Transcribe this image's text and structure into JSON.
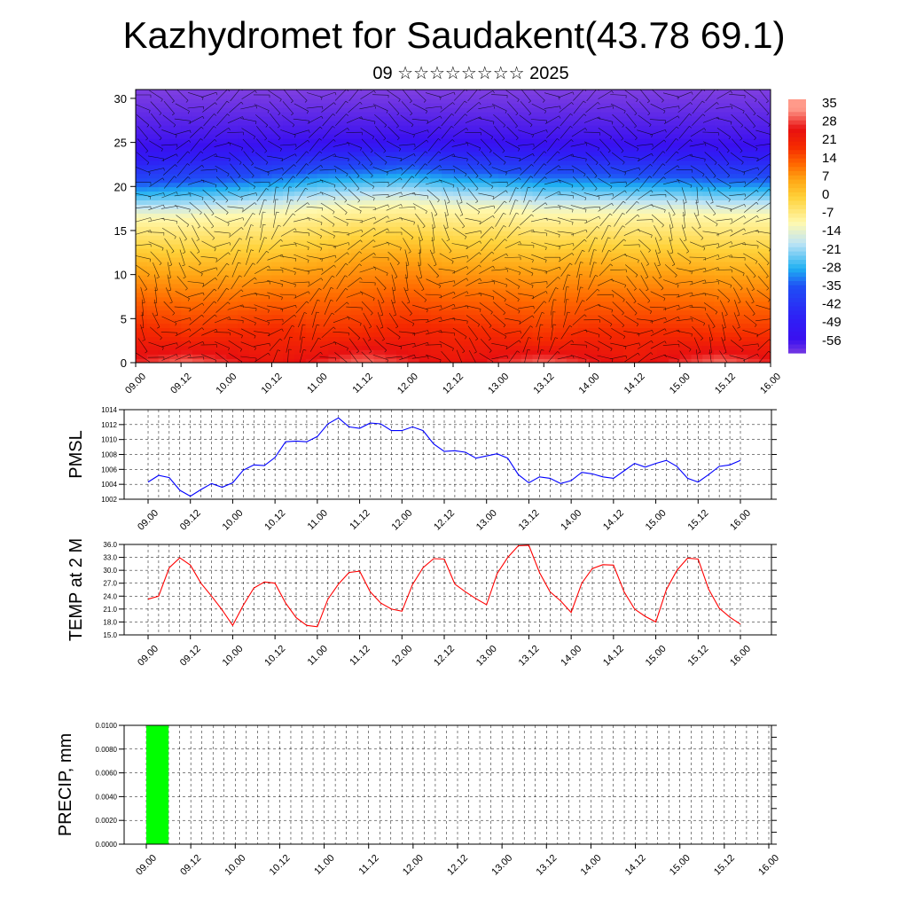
{
  "title": "Kazhydromet for Saudakent(43.78 69.1)",
  "subtitle": "09 ☆☆☆☆☆☆☆☆ 2025",
  "time_labels": [
    "09.00",
    "09.12",
    "10.00",
    "10.12",
    "11.00",
    "11.12",
    "12.00",
    "12.12",
    "13.00",
    "13.12",
    "14.00",
    "14.12",
    "15.00",
    "15.12",
    "16.00"
  ],
  "chart_data": [
    {
      "type": "heatmap",
      "description_key": "temperature-height cross section with wind barbs",
      "x_categories": [
        "09.00",
        "09.12",
        "10.00",
        "10.12",
        "11.00",
        "11.12",
        "12.00",
        "12.12",
        "13.00",
        "13.12",
        "14.00",
        "14.12",
        "15.00",
        "15.12",
        "16.00"
      ],
      "y_ticks": [
        0,
        5,
        10,
        15,
        20,
        25,
        30
      ],
      "ylim": [
        0,
        31
      ],
      "isotherm_heights": [
        {
          "level": 20,
          "h": [
            4,
            3,
            3.5,
            4,
            3,
            3.5,
            4.5,
            4,
            3.5,
            2.5,
            3.5,
            3.5,
            3.5,
            3,
            3
          ]
        },
        {
          "level": 7,
          "h": [
            10.5,
            10,
            10,
            10.5,
            11,
            12,
            12,
            11,
            11,
            10.5,
            11,
            10.5,
            10.5,
            10,
            10
          ]
        },
        {
          "level": -10,
          "h": [
            16.5,
            16.5,
            16.8,
            17,
            17.5,
            17.8,
            18,
            17.5,
            17.5,
            17,
            17,
            17,
            17,
            16.8,
            16.8
          ]
        },
        {
          "level": -35,
          "h": [
            20.5,
            20.8,
            21,
            21.5,
            22,
            22.2,
            22.5,
            22,
            21.8,
            21.5,
            21.5,
            21.3,
            21.3,
            21,
            21
          ]
        },
        {
          "level": -56,
          "h": [
            24.5,
            24.7,
            24.8,
            25,
            25.2,
            25.3,
            25.5,
            25.3,
            25.2,
            25,
            25,
            25,
            24.9,
            24.8,
            24.8
          ]
        }
      ],
      "colorbar_labels": [
        "35",
        "28",
        "21",
        "14",
        "7",
        "0",
        "-7",
        "-14",
        "-21",
        "-28",
        "-35",
        "-42",
        "-49",
        "-56"
      ],
      "colors": [
        "#7f3fe0",
        "#2f1ef5",
        "#1f4ff5",
        "#1fb0f2",
        "#bfe4f5",
        "#fff9b0",
        "#ffd23a",
        "#ffa614",
        "#ff6a00",
        "#f52a00",
        "#e81010",
        "#ff9a8a"
      ]
    },
    {
      "type": "line",
      "ylabel": "PMSL",
      "yticks": [
        "1002",
        "1004",
        "1006",
        "1008",
        "1010",
        "1012",
        "1014"
      ],
      "ylim": [
        1002,
        1014
      ],
      "x": [
        "09.00",
        "09.03",
        "09.06",
        "09.09",
        "09.12",
        "09.15",
        "09.18",
        "09.21",
        "10.00",
        "10.03",
        "10.06",
        "10.09",
        "10.12",
        "10.15",
        "10.18",
        "10.21",
        "11.00",
        "11.03",
        "11.06",
        "11.09",
        "11.12",
        "11.15",
        "11.18",
        "11.21",
        "12.00",
        "12.03",
        "12.06",
        "12.09",
        "12.12",
        "12.15",
        "12.18",
        "12.21",
        "13.00",
        "13.03",
        "13.06",
        "13.09",
        "13.12",
        "13.15",
        "13.18",
        "13.21",
        "14.00",
        "14.03",
        "14.06",
        "14.09",
        "14.12",
        "14.15",
        "14.18",
        "14.21",
        "15.00",
        "15.03",
        "15.06",
        "15.09",
        "15.12",
        "15.15",
        "15.18",
        "15.21",
        "16.00"
      ],
      "series": [
        {
          "values": [
            1004.3,
            1005.2,
            1004.9,
            1003.2,
            1002.4,
            1003.3,
            1004.1,
            1003.6,
            1004.2,
            1005.9,
            1006.6,
            1006.5,
            1007.6,
            1009.7,
            1009.8,
            1009.7,
            1010.4,
            1012.1,
            1012.9,
            1011.7,
            1011.5,
            1012.2,
            1012.1,
            1011.2,
            1011.2,
            1011.7,
            1011.2,
            1009.4,
            1008.4,
            1008.5,
            1008.3,
            1007.5,
            1007.8,
            1008.1,
            1007.5,
            1005.3,
            1004.2,
            1005.0,
            1004.8,
            1004.1,
            1004.5,
            1005.6,
            1005.4,
            1005.0,
            1004.8,
            1005.8,
            1006.8,
            1006.3,
            1006.8,
            1007.2,
            1006.4,
            1004.8,
            1004.3,
            1005.3,
            1006.4,
            1006.6,
            1007.2
          ],
          "color": "#0000ff"
        }
      ]
    },
    {
      "type": "line",
      "ylabel": "TEMP at 2 M",
      "yticks": [
        "15.0",
        "18.0",
        "21.0",
        "24.0",
        "27.0",
        "30.0",
        "33.0",
        "36.0"
      ],
      "ylim": [
        15,
        36
      ],
      "x": [
        "09.00",
        "09.03",
        "09.06",
        "09.09",
        "09.12",
        "09.15",
        "09.18",
        "09.21",
        "10.00",
        "10.03",
        "10.06",
        "10.09",
        "10.12",
        "10.15",
        "10.18",
        "10.21",
        "11.00",
        "11.03",
        "11.06",
        "11.09",
        "11.12",
        "11.15",
        "11.18",
        "11.21",
        "12.00",
        "12.03",
        "12.06",
        "12.09",
        "12.12",
        "12.15",
        "12.18",
        "12.21",
        "13.00",
        "13.03",
        "13.06",
        "13.09",
        "13.12",
        "13.15",
        "13.18",
        "13.21",
        "14.00",
        "14.03",
        "14.06",
        "14.09",
        "14.12",
        "14.15",
        "14.18",
        "14.21",
        "15.00",
        "15.03",
        "15.06",
        "15.09",
        "15.12",
        "15.15",
        "15.18",
        "15.21",
        "16.00"
      ],
      "series": [
        {
          "values": [
            23.3,
            24.0,
            30.6,
            32.9,
            31.2,
            27.0,
            24.0,
            20.8,
            17.2,
            21.9,
            25.9,
            27.3,
            27.0,
            22.4,
            19.0,
            17.2,
            16.9,
            23.3,
            26.8,
            29.5,
            29.8,
            25.0,
            22.4,
            21.0,
            20.5,
            26.7,
            30.6,
            32.7,
            32.6,
            26.8,
            25.0,
            23.4,
            22.0,
            29.2,
            33.0,
            35.7,
            35.8,
            29.5,
            25.0,
            22.9,
            20.2,
            27.0,
            30.4,
            31.3,
            31.2,
            25.0,
            21.0,
            19.3,
            18.0,
            25.5,
            30.0,
            32.8,
            32.6,
            25.6,
            21.2,
            19.1,
            17.5
          ],
          "color": "#ff0000"
        }
      ]
    },
    {
      "type": "bar",
      "ylabel": "PRECIP, mm",
      "yticks": [
        "0.0000",
        "0.0020",
        "0.0040",
        "0.0060",
        "0.0080",
        "0.0100"
      ],
      "ylim": [
        0,
        0.01
      ],
      "bars": [
        {
          "x_start": "09.00",
          "x_end": "09.06",
          "value": 0.01,
          "color": "#00ff00"
        }
      ]
    }
  ]
}
